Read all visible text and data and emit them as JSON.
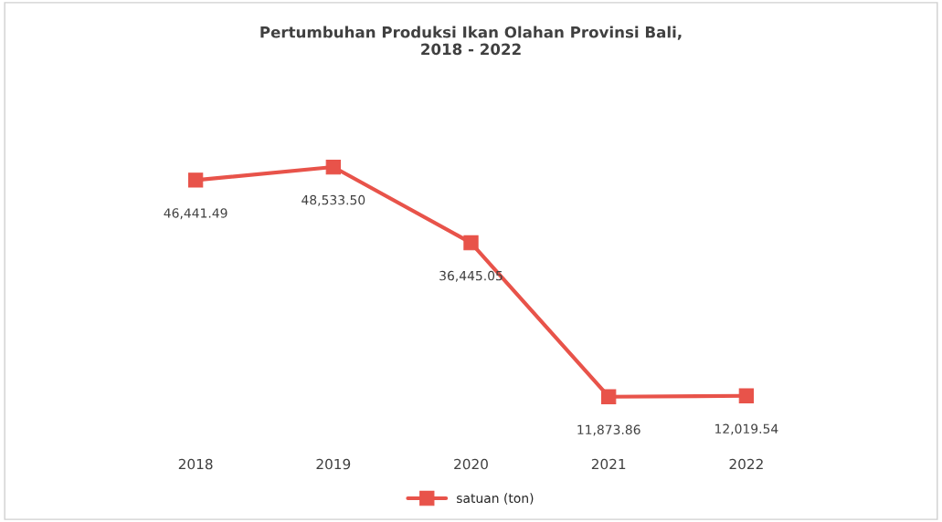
{
  "chart_data": {
    "type": "line",
    "title": "Pertumbuhan Produksi Ikan Olahan Provinsi Bali,\n2018 - 2022",
    "categories": [
      "2018",
      "2019",
      "2020",
      "2021",
      "2022"
    ],
    "series": [
      {
        "name": "satuan (ton)",
        "color": "#e8534a",
        "values": [
          46441.49,
          48533.5,
          36445.05,
          11873.86,
          12019.54
        ],
        "value_labels": [
          "46,441.49",
          "48,533.50",
          "36,445.05",
          "11,873.86",
          "12,019.54"
        ]
      }
    ],
    "marker": "square",
    "legend": "bottom",
    "grid": false,
    "tick_labels": "x"
  }
}
